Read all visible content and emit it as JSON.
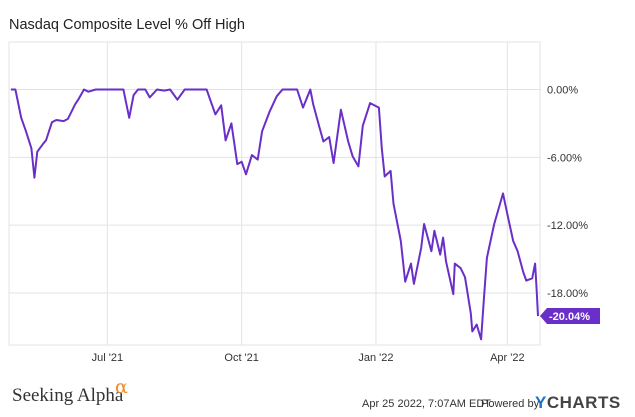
{
  "title": "Nasdaq Composite Level % Off High",
  "branding": {
    "source": "Seeking Alpha",
    "alpha_symbol": "α",
    "timestamp": "Apr 25 2022, 7:07AM EDT.",
    "powered_by": "Powered by",
    "ycharts_y": "Y",
    "ycharts_rest": "CHARTS"
  },
  "colors": {
    "series": "#6a2fc9",
    "last_value_bg": "#6a2fc9",
    "alpha": "#f08a2a",
    "ycharts_y": "#1a73c9"
  },
  "chart_data": {
    "type": "line",
    "title": "Nasdaq Composite Level % Off High",
    "xlabel": "",
    "ylabel": "",
    "x_ticks": [
      "Jul '21",
      "Oct '21",
      "Jan '22",
      "Apr '22"
    ],
    "y_ticks": [
      "0.00%",
      "-6.00%",
      "-12.00%",
      "-18.00%"
    ],
    "ylim": [
      -22.6,
      4.2
    ],
    "y_axis_side": "right",
    "grid": true,
    "last_value_label": "-20.04%",
    "series": [
      {
        "x": [
          "2021-04-26",
          "2021-04-29",
          "2021-05-03",
          "2021-05-06",
          "2021-05-10",
          "2021-05-12",
          "2021-05-14",
          "2021-05-18",
          "2021-05-20",
          "2021-05-24",
          "2021-05-27",
          "2021-06-01",
          "2021-06-04",
          "2021-06-09",
          "2021-06-11",
          "2021-06-15",
          "2021-06-18",
          "2021-06-23",
          "2021-06-28",
          "2021-07-02",
          "2021-07-07",
          "2021-07-12",
          "2021-07-16",
          "2021-07-19",
          "2021-07-22",
          "2021-07-27",
          "2021-07-30",
          "2021-08-04",
          "2021-08-09",
          "2021-08-13",
          "2021-08-18",
          "2021-08-23",
          "2021-08-27",
          "2021-09-01",
          "2021-09-07",
          "2021-09-13",
          "2021-09-17",
          "2021-09-20",
          "2021-09-24",
          "2021-09-28",
          "2021-10-01",
          "2021-10-04",
          "2021-10-08",
          "2021-10-12",
          "2021-10-15",
          "2021-10-20",
          "2021-10-25",
          "2021-10-29",
          "2021-11-03",
          "2021-11-08",
          "2021-11-12",
          "2021-11-17",
          "2021-11-19",
          "2021-11-23",
          "2021-11-26",
          "2021-11-30",
          "2021-12-03",
          "2021-12-08",
          "2021-12-13",
          "2021-12-16",
          "2021-12-20",
          "2021-12-23",
          "2021-12-28",
          "2022-01-03",
          "2022-01-05",
          "2022-01-07",
          "2022-01-11",
          "2022-01-13",
          "2022-01-18",
          "2022-01-21",
          "2022-01-25",
          "2022-01-27",
          "2022-02-01",
          "2022-02-03",
          "2022-02-08",
          "2022-02-10",
          "2022-02-14",
          "2022-02-16",
          "2022-02-18",
          "2022-02-23",
          "2022-02-24",
          "2022-02-28",
          "2022-03-03",
          "2022-03-07",
          "2022-03-08",
          "2022-03-11",
          "2022-03-14",
          "2022-03-16",
          "2022-03-18",
          "2022-03-23",
          "2022-03-29",
          "2022-04-01",
          "2022-04-05",
          "2022-04-08",
          "2022-04-12",
          "2022-04-14",
          "2022-04-18",
          "2022-04-20",
          "2022-04-21",
          "2022-04-22"
        ],
        "y": [
          0,
          0,
          -2.5,
          -3.6,
          -5.2,
          -7.8,
          -5.5,
          -4.8,
          -4.5,
          -2.9,
          -2.7,
          -2.8,
          -2.6,
          -1.3,
          -0.9,
          0,
          -0.2,
          0,
          0,
          0,
          0,
          0,
          -2.5,
          -0.5,
          0,
          0,
          -0.7,
          0,
          -0.1,
          0,
          -0.9,
          0,
          0,
          0,
          0,
          -2.2,
          -1.4,
          -4.5,
          -3.0,
          -6.6,
          -6.4,
          -7.5,
          -5.8,
          -6.2,
          -3.7,
          -2.0,
          -0.6,
          0,
          0,
          0,
          -1.6,
          0,
          -1.3,
          -3.2,
          -4.6,
          -4.2,
          -6.5,
          -1.8,
          -4.6,
          -5.9,
          -6.8,
          -3.2,
          -1.2,
          -1.6,
          -5.2,
          -7.7,
          -7.2,
          -10.1,
          -13.4,
          -17.0,
          -15.4,
          -17.2,
          -14.0,
          -11.9,
          -14.3,
          -12.5,
          -14.6,
          -13.1,
          -15.2,
          -18.1,
          -15.4,
          -15.8,
          -16.6,
          -19.8,
          -21.4,
          -20.8,
          -22.1,
          -18.4,
          -14.9,
          -11.9,
          -9.2,
          -11.0,
          -13.4,
          -14.3,
          -16.2,
          -16.9,
          -16.7,
          -15.4,
          -17.5,
          -20.04
        ]
      }
    ]
  }
}
